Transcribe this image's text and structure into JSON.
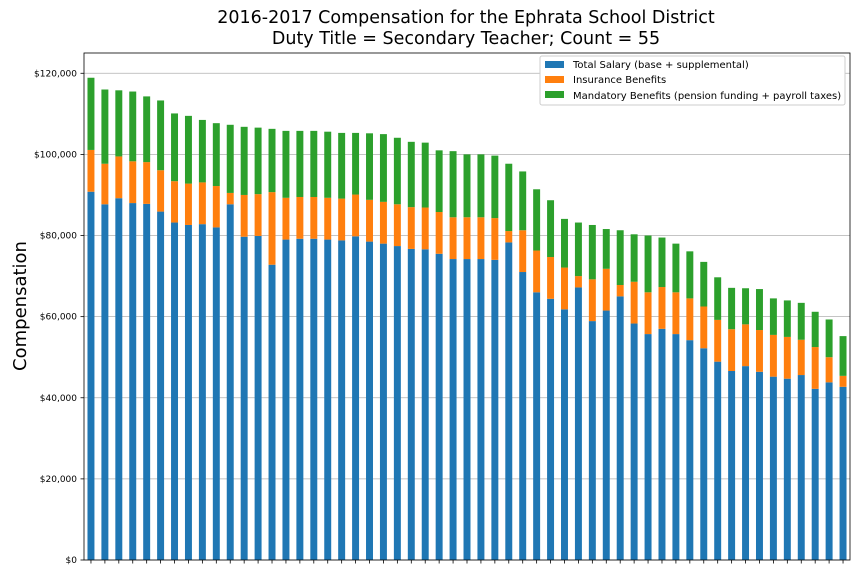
{
  "chart_data": {
    "type": "bar",
    "stacked": true,
    "title": "2016-2017 Compensation for the Ephrata School District",
    "subtitle": "Duty Title = Secondary Teacher; Count = 55",
    "xlabel": "",
    "ylabel": "Compensation",
    "ylim": [
      0,
      125000
    ],
    "yticks": [
      0,
      20000,
      40000,
      60000,
      80000,
      100000,
      120000
    ],
    "ytick_labels": [
      "$0",
      "$20,000",
      "$40,000",
      "$60,000",
      "$80,000",
      "$100,000",
      "$120,000"
    ],
    "grid": "horizontal",
    "legend_position": "top-right",
    "series": [
      {
        "name": "Total Salary (base + supplemental)",
        "color": "#1f77b4",
        "values": [
          90800,
          87700,
          89200,
          88000,
          87800,
          85900,
          83200,
          82600,
          82800,
          82000,
          87700,
          79700,
          79900,
          72800,
          79000,
          79200,
          79200,
          79000,
          78800,
          79800,
          78500,
          78000,
          77400,
          76700,
          76600,
          75500,
          74200,
          74200,
          74200,
          74000,
          78300,
          71000,
          66000,
          64400,
          61800,
          67200,
          58900,
          61500,
          65000,
          58300,
          55700,
          57000,
          55700,
          54200,
          52200,
          48900,
          46600,
          47800,
          46400,
          45200,
          44700,
          45600,
          42200,
          43800,
          42700
        ]
      },
      {
        "name": "Insurance Benefits",
        "color": "#ff7f0e",
        "values": [
          10300,
          10000,
          10300,
          10300,
          10300,
          10200,
          10200,
          10200,
          10300,
          10200,
          2800,
          10300,
          10300,
          17900,
          10300,
          10300,
          10300,
          10300,
          10300,
          10300,
          10300,
          10300,
          10300,
          10300,
          10300,
          10300,
          10300,
          10300,
          10300,
          10300,
          2800,
          10300,
          10300,
          10300,
          10300,
          2800,
          10300,
          10300,
          2800,
          10300,
          10300,
          10300,
          10300,
          10300,
          10300,
          10300,
          10300,
          10300,
          10300,
          10300,
          10300,
          8700,
          10300,
          6200,
          2700
        ]
      },
      {
        "name": "Mandatory Benefits (pension funding + payroll taxes)",
        "color": "#2ca02c",
        "values": [
          17800,
          18300,
          16300,
          17200,
          16200,
          17200,
          16700,
          16700,
          15400,
          15500,
          16800,
          16800,
          16400,
          15600,
          16500,
          16300,
          16300,
          16300,
          16200,
          15200,
          16400,
          16700,
          16400,
          16100,
          16000,
          15200,
          16300,
          15500,
          15500,
          15400,
          16600,
          14500,
          15100,
          14000,
          12000,
          13200,
          13400,
          9800,
          13500,
          11700,
          14000,
          12200,
          12000,
          11600,
          11000,
          10500,
          10200,
          8900,
          10100,
          9000,
          9000,
          9100,
          8700,
          9300,
          9800
        ]
      }
    ]
  }
}
